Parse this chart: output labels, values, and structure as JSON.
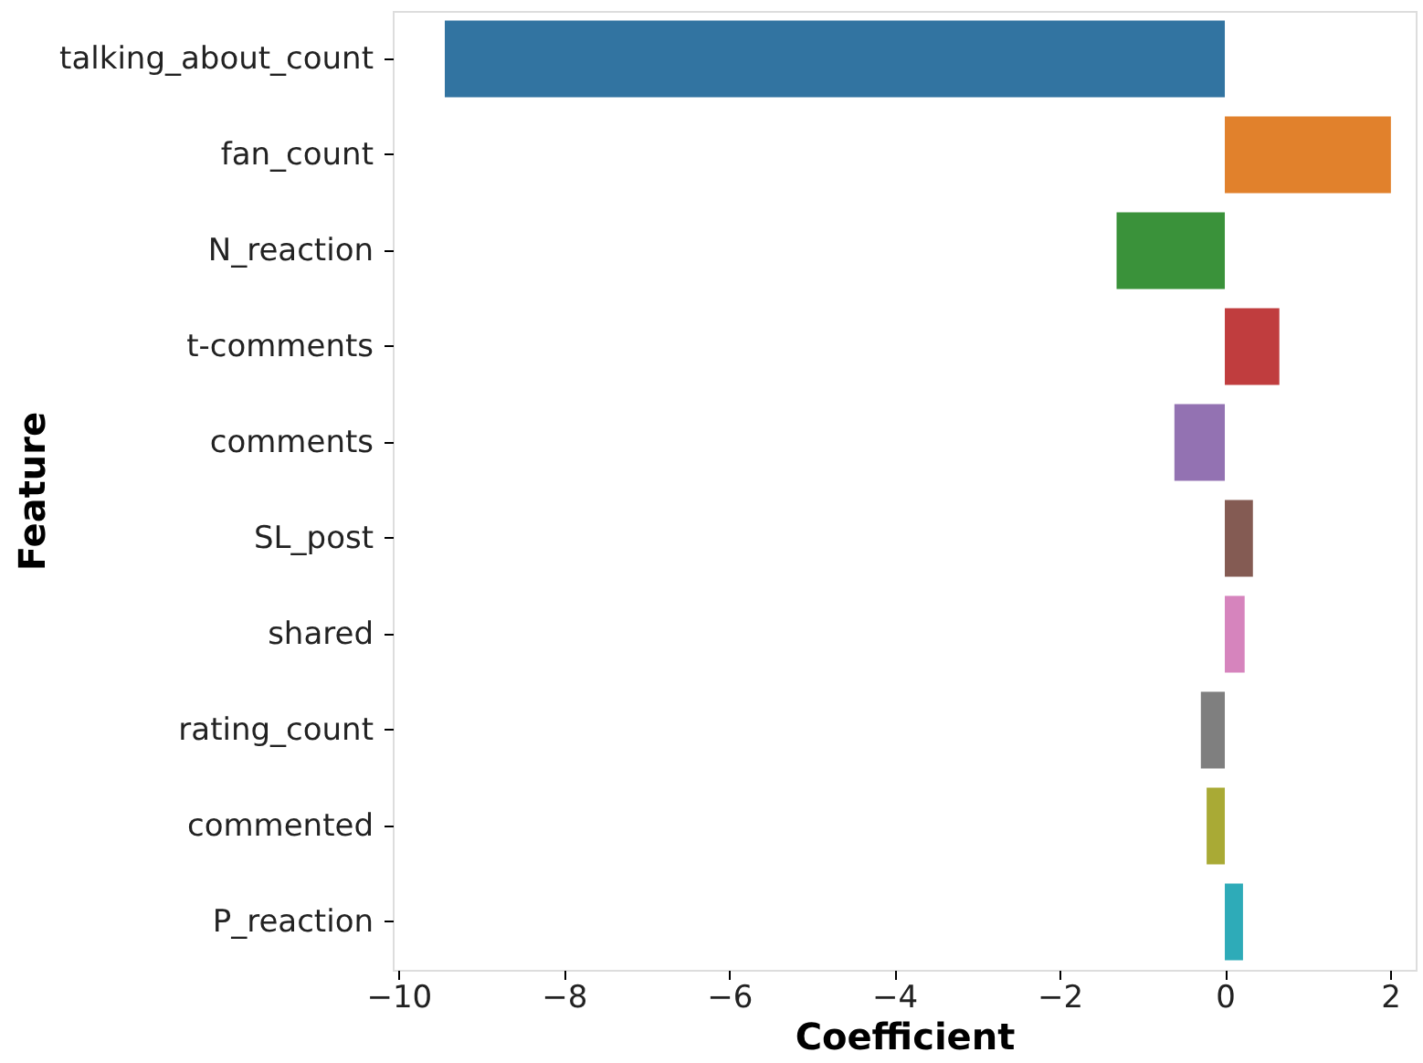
{
  "chart_data": {
    "type": "bar",
    "orientation": "horizontal",
    "xlabel": "Coefficient",
    "ylabel": "Feature",
    "categories": [
      "talking_about_count",
      "fan_count",
      "N_reaction",
      "t-comments",
      "comments",
      "SL_post",
      "shared",
      "rating_count",
      "commented",
      "P_reaction"
    ],
    "values": [
      -9.44,
      2.01,
      -1.31,
      0.66,
      -0.61,
      0.34,
      0.24,
      -0.29,
      -0.22,
      0.22
    ],
    "colors": [
      "#3274a1",
      "#e1812c",
      "#3a923a",
      "#c03d3e",
      "#9372b2",
      "#845b53",
      "#d684bd",
      "#7f7f7f",
      "#a9aa35",
      "#2eabb8"
    ],
    "xlim": [
      -10.07,
      2.31
    ],
    "xticks": [
      -10,
      -8,
      -6,
      -4,
      -2,
      0,
      2
    ],
    "grid": false,
    "legend": false
  }
}
